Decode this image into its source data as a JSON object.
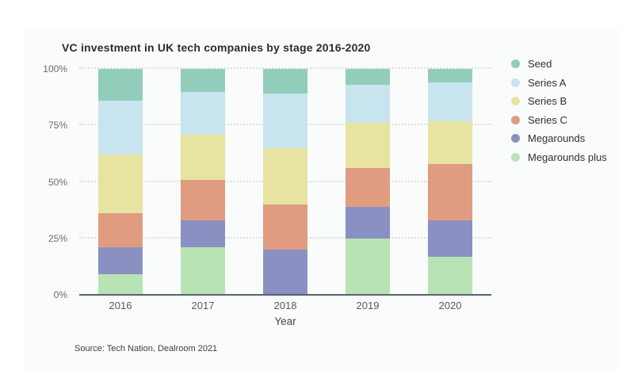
{
  "chart": {
    "title": "VC investment in UK tech companies by stage 2016-2020",
    "xlabel": "Year",
    "source": "Source: Tech Nation, Dealroom 2021"
  },
  "chart_data": {
    "type": "bar",
    "stacked": true,
    "unit": "percent",
    "title": "VC investment in UK tech companies by stage 2016-2020",
    "xlabel": "Year",
    "ylabel": "",
    "categories": [
      "2016",
      "2017",
      "2018",
      "2019",
      "2020"
    ],
    "y_ticks": [
      "0%",
      "25%",
      "50%",
      "75%",
      "100%"
    ],
    "ylim": [
      0,
      100
    ],
    "grid": "horizontal-dotted",
    "legend_position": "right",
    "series": [
      {
        "name": "Seed",
        "color": "#92cdbb",
        "values": [
          14,
          10,
          11,
          7,
          6
        ]
      },
      {
        "name": "Series A",
        "color": "#c8e4ee",
        "values": [
          24,
          19,
          24,
          17,
          17
        ]
      },
      {
        "name": "Series B",
        "color": "#e7e4a1",
        "values": [
          26,
          20,
          25,
          20,
          19
        ]
      },
      {
        "name": "Series C",
        "color": "#e09c81",
        "values": [
          15,
          18,
          20,
          17,
          25
        ]
      },
      {
        "name": "Megarounds",
        "color": "#8a91c2",
        "values": [
          12,
          12,
          20,
          14,
          16
        ]
      },
      {
        "name": "Megarounds plus",
        "color": "#b8e3b5",
        "values": [
          9,
          21,
          0,
          25,
          17
        ]
      }
    ],
    "source": "Source: Tech Nation, Dealroom 2021",
    "colors": {
      "card_background": "#fafbfb",
      "page_background": "#ffffff",
      "axis_line": "#5a626a",
      "gridline": "#dddedf"
    }
  }
}
